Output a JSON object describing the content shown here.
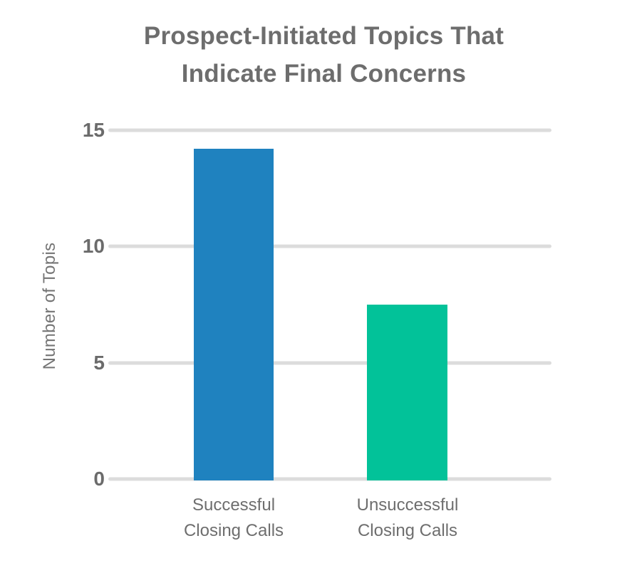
{
  "header": {
    "title_lines": [
      "Prospect-Initiated Topics That",
      "Indicate Final Concerns"
    ]
  },
  "chart_data": {
    "type": "bar",
    "title": "Prospect-Initiated Topics That Indicate Final Concerns",
    "categories": [
      "Successful Closing Calls",
      "Unsuccessful Closing Calls"
    ],
    "category_lines": [
      [
        "Successful",
        "Closing Calls"
      ],
      [
        "Unsuccessful",
        "Closing Calls"
      ]
    ],
    "values": [
      14.2,
      7.5
    ],
    "xlabel": "",
    "ylabel": "Number of Topis",
    "ylim": [
      0,
      15
    ],
    "yticks": [
      15,
      10,
      5,
      0
    ],
    "grid": true,
    "legend": false,
    "bar_colors": [
      "#1f82bf",
      "#02c299"
    ]
  },
  "colors": {
    "title": "#6d6d6d",
    "y_ticks": "#6b6b6b",
    "y_axis_label": "#757575",
    "x_labels": "#6e6e6e",
    "gridline": "#dcdcdc",
    "bar_successful": "#1f82bf",
    "bar_unsuccessful": "#02c299"
  }
}
